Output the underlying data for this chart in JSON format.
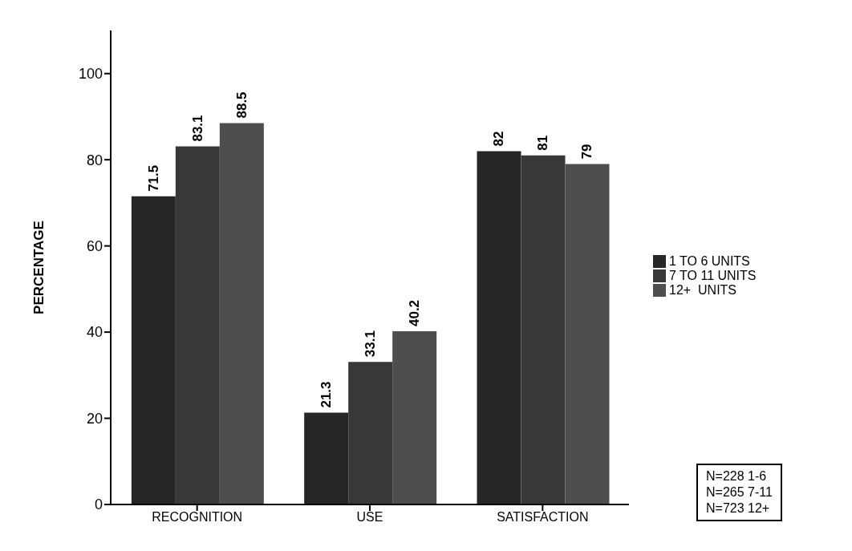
{
  "chart_data": {
    "type": "bar",
    "ylabel": "PERCENTAGE",
    "categories": [
      "RECOGNITION",
      "USE",
      "SATISFACTION"
    ],
    "series": [
      {
        "name": "1 TO 6 UNITS",
        "color": "#262626",
        "values": [
          71.5,
          21.3,
          82
        ]
      },
      {
        "name": "7 TO 11 UNITS",
        "color": "#383838",
        "values": [
          83.1,
          33.1,
          81
        ]
      },
      {
        "name": "12+  UNITS",
        "color": "#4e4e4e",
        "values": [
          88.5,
          40.2,
          79
        ]
      }
    ],
    "ylim": [
      0,
      110
    ],
    "yticks": [
      0,
      20,
      40,
      60,
      80,
      100
    ],
    "legend": "right",
    "data_labels": true,
    "annotations": [
      "N=228 1-6",
      "N=265 7-11",
      "N=723 12+"
    ]
  }
}
